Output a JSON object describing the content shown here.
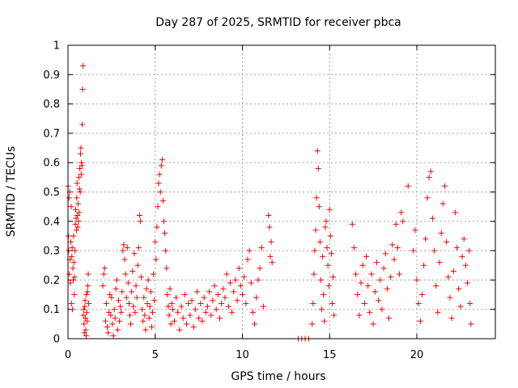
{
  "chart_data": {
    "type": "scatter",
    "title": "Day 287 of 2025, SRMTID for receiver pbca",
    "xlabel": "GPS time / hours",
    "ylabel": "SRMTID / TECUs",
    "xlim": [
      0,
      24.5
    ],
    "ylim": [
      0,
      1
    ],
    "xticks": [
      0,
      5,
      10,
      15,
      20
    ],
    "xtick_labels": [
      "0",
      "5",
      "10",
      "15",
      "20"
    ],
    "yticks": [
      0,
      0.1,
      0.2,
      0.3,
      0.4,
      0.5,
      0.6,
      0.7,
      0.8,
      0.9,
      1
    ],
    "ytick_labels": [
      "0",
      "0.1",
      "0.2",
      "0.3",
      "0.4",
      "0.5",
      "0.6",
      "0.7",
      "0.8",
      "0.9",
      "1"
    ],
    "grid": true,
    "marker": "+",
    "color": "#ff0000",
    "series": [
      {
        "name": "pbca",
        "points": [
          [
            0.0,
            0.52
          ],
          [
            0.02,
            0.35
          ],
          [
            0.04,
            0.3
          ],
          [
            0.06,
            0.48
          ],
          [
            0.08,
            0.22
          ],
          [
            0.1,
            0.5
          ],
          [
            0.12,
            0.27
          ],
          [
            0.14,
            0.19
          ],
          [
            0.16,
            0.33
          ],
          [
            0.18,
            0.45
          ],
          [
            0.2,
            0.12
          ],
          [
            0.22,
            0.28
          ],
          [
            0.24,
            0.31
          ],
          [
            0.26,
            0.1
          ],
          [
            0.28,
            0.24
          ],
          [
            0.3,
            0.2
          ],
          [
            0.32,
            0.35
          ],
          [
            0.34,
            0.26
          ],
          [
            0.36,
            0.15
          ],
          [
            0.38,
            0.21
          ],
          [
            0.4,
            0.3
          ],
          [
            0.42,
            0.39
          ],
          [
            0.44,
            0.44
          ],
          [
            0.46,
            0.41
          ],
          [
            0.48,
            0.37
          ],
          [
            0.5,
            0.48
          ],
          [
            0.52,
            0.53
          ],
          [
            0.54,
            0.42
          ],
          [
            0.56,
            0.38
          ],
          [
            0.58,
            0.46
          ],
          [
            0.6,
            0.4
          ],
          [
            0.62,
            0.55
          ],
          [
            0.64,
            0.43
          ],
          [
            0.66,
            0.51
          ],
          [
            0.68,
            0.58
          ],
          [
            0.7,
            0.5
          ],
          [
            0.72,
            0.63
          ],
          [
            0.74,
            0.65
          ],
          [
            0.76,
            0.56
          ],
          [
            0.78,
            0.6
          ],
          [
            0.8,
            0.59
          ],
          [
            0.82,
            0.73
          ],
          [
            0.84,
            0.85
          ],
          [
            0.86,
            0.93
          ],
          [
            0.88,
            0.08
          ],
          [
            0.9,
            0.1
          ],
          [
            0.92,
            0.05
          ],
          [
            0.94,
            0.02
          ],
          [
            0.96,
            0.11
          ],
          [
            0.98,
            0.13
          ],
          [
            1.0,
            0.07
          ],
          [
            1.02,
            0.03
          ],
          [
            1.04,
            0.01
          ],
          [
            1.06,
            0.15
          ],
          [
            1.08,
            0.09
          ],
          [
            1.1,
            0.06
          ],
          [
            1.12,
            0.16
          ],
          [
            1.14,
            0.18
          ],
          [
            1.16,
            0.22
          ],
          [
            1.18,
            0.12
          ],
          [
            2.0,
            0.18
          ],
          [
            2.05,
            0.22
          ],
          [
            2.1,
            0.24
          ],
          [
            2.15,
            0.06
          ],
          [
            2.2,
            0.12
          ],
          [
            2.25,
            0.04
          ],
          [
            2.3,
            0.02
          ],
          [
            2.35,
            0.09
          ],
          [
            2.4,
            0.15
          ],
          [
            2.45,
            0.08
          ],
          [
            2.5,
            0.14
          ],
          [
            2.55,
            0.05
          ],
          [
            2.6,
            0.01
          ],
          [
            2.65,
            0.1
          ],
          [
            2.7,
            0.07
          ],
          [
            2.75,
            0.17
          ],
          [
            2.8,
            0.2
          ],
          [
            2.85,
            0.03
          ],
          [
            2.9,
            0.13
          ],
          [
            2.95,
            0.06
          ],
          [
            3.0,
            0.11
          ],
          [
            3.05,
            0.09
          ],
          [
            3.1,
            0.16
          ],
          [
            3.15,
            0.3
          ],
          [
            3.2,
            0.32
          ],
          [
            3.25,
            0.27
          ],
          [
            3.3,
            0.22
          ],
          [
            3.35,
            0.14
          ],
          [
            3.4,
            0.31
          ],
          [
            3.45,
            0.19
          ],
          [
            3.5,
            0.12
          ],
          [
            3.55,
            0.08
          ],
          [
            3.6,
            0.05
          ],
          [
            3.65,
            0.16
          ],
          [
            3.7,
            0.23
          ],
          [
            3.75,
            0.11
          ],
          [
            3.8,
            0.29
          ],
          [
            3.85,
            0.09
          ],
          [
            3.9,
            0.18
          ],
          [
            3.95,
            0.14
          ],
          [
            4.0,
            0.25
          ],
          [
            4.05,
            0.31
          ],
          [
            4.1,
            0.42
          ],
          [
            4.15,
            0.4
          ],
          [
            4.2,
            0.21
          ],
          [
            4.25,
            0.1
          ],
          [
            4.3,
            0.06
          ],
          [
            4.35,
            0.14
          ],
          [
            4.4,
            0.08
          ],
          [
            4.45,
            0.03
          ],
          [
            4.5,
            0.17
          ],
          [
            4.55,
            0.12
          ],
          [
            4.6,
            0.2
          ],
          [
            4.65,
            0.07
          ],
          [
            4.7,
            0.11
          ],
          [
            4.75,
            0.16
          ],
          [
            4.8,
            0.04
          ],
          [
            4.85,
            0.09
          ],
          [
            4.9,
            0.22
          ],
          [
            4.95,
            0.13
          ],
          [
            5.0,
            0.33
          ],
          [
            5.05,
            0.27
          ],
          [
            5.1,
            0.38
          ],
          [
            5.15,
            0.45
          ],
          [
            5.2,
            0.53
          ],
          [
            5.25,
            0.56
          ],
          [
            5.3,
            0.5
          ],
          [
            5.35,
            0.59
          ],
          [
            5.4,
            0.61
          ],
          [
            5.45,
            0.47
          ],
          [
            5.5,
            0.4
          ],
          [
            5.55,
            0.36
          ],
          [
            5.6,
            0.3
          ],
          [
            5.65,
            0.24
          ],
          [
            5.7,
            0.15
          ],
          [
            5.75,
            0.11
          ],
          [
            5.8,
            0.08
          ],
          [
            5.85,
            0.17
          ],
          [
            5.9,
            0.05
          ],
          [
            5.95,
            0.12
          ],
          [
            6.0,
            0.1
          ],
          [
            6.1,
            0.06
          ],
          [
            6.2,
            0.14
          ],
          [
            6.3,
            0.09
          ],
          [
            6.4,
            0.03
          ],
          [
            6.5,
            0.11
          ],
          [
            6.6,
            0.07
          ],
          [
            6.7,
            0.15
          ],
          [
            6.8,
            0.05
          ],
          [
            6.9,
            0.12
          ],
          [
            7.0,
            0.08
          ],
          [
            7.1,
            0.13
          ],
          [
            7.2,
            0.04
          ],
          [
            7.3,
            0.1
          ],
          [
            7.4,
            0.16
          ],
          [
            7.5,
            0.07
          ],
          [
            7.6,
            0.12
          ],
          [
            7.7,
            0.06
          ],
          [
            7.8,
            0.14
          ],
          [
            7.9,
            0.09
          ],
          [
            8.0,
            0.11
          ],
          [
            8.1,
            0.16
          ],
          [
            8.2,
            0.08
          ],
          [
            8.3,
            0.13
          ],
          [
            8.4,
            0.18
          ],
          [
            8.5,
            0.1
          ],
          [
            8.6,
            0.15
          ],
          [
            8.7,
            0.07
          ],
          [
            8.8,
            0.12
          ],
          [
            8.9,
            0.17
          ],
          [
            9.0,
            0.14
          ],
          [
            9.1,
            0.22
          ],
          [
            9.2,
            0.11
          ],
          [
            9.3,
            0.19
          ],
          [
            9.4,
            0.09
          ],
          [
            9.5,
            0.16
          ],
          [
            9.6,
            0.2
          ],
          [
            9.7,
            0.13
          ],
          [
            9.8,
            0.24
          ],
          [
            9.9,
            0.18
          ],
          [
            10.0,
            0.15
          ],
          [
            10.1,
            0.21
          ],
          [
            10.2,
            0.12
          ],
          [
            10.3,
            0.27
          ],
          [
            10.4,
            0.3
          ],
          [
            10.5,
            0.19
          ],
          [
            10.6,
            0.09
          ],
          [
            10.7,
            0.05
          ],
          [
            10.8,
            0.14
          ],
          [
            10.9,
            0.2
          ],
          [
            11.0,
            0.24
          ],
          [
            11.1,
            0.31
          ],
          [
            11.2,
            0.11
          ],
          [
            11.5,
            0.42
          ],
          [
            11.55,
            0.38
          ],
          [
            11.6,
            0.28
          ],
          [
            11.65,
            0.33
          ],
          [
            11.7,
            0.26
          ],
          [
            13.2,
            0.0
          ],
          [
            13.4,
            0.0
          ],
          [
            13.6,
            0.0
          ],
          [
            13.8,
            0.0
          ],
          [
            14.0,
            0.05
          ],
          [
            14.05,
            0.12
          ],
          [
            14.1,
            0.22
          ],
          [
            14.15,
            0.3
          ],
          [
            14.2,
            0.37
          ],
          [
            14.25,
            0.48
          ],
          [
            14.3,
            0.64
          ],
          [
            14.35,
            0.58
          ],
          [
            14.4,
            0.45
          ],
          [
            14.45,
            0.33
          ],
          [
            14.5,
            0.2
          ],
          [
            14.55,
            0.1
          ],
          [
            14.6,
            0.28
          ],
          [
            14.65,
            0.15
          ],
          [
            14.7,
            0.06
          ],
          [
            14.75,
            0.38
          ],
          [
            14.8,
            0.4
          ],
          [
            14.85,
            0.31
          ],
          [
            14.9,
            0.25
          ],
          [
            14.95,
            0.18
          ],
          [
            15.0,
            0.44
          ],
          [
            15.05,
            0.35
          ],
          [
            15.1,
            0.29
          ],
          [
            15.15,
            0.12
          ],
          [
            15.2,
            0.21
          ],
          [
            15.25,
            0.08
          ],
          [
            16.3,
            0.39
          ],
          [
            16.4,
            0.31
          ],
          [
            16.5,
            0.22
          ],
          [
            16.6,
            0.15
          ],
          [
            16.7,
            0.08
          ],
          [
            16.8,
            0.19
          ],
          [
            16.9,
            0.25
          ],
          [
            17.0,
            0.12
          ],
          [
            17.1,
            0.28
          ],
          [
            17.2,
            0.18
          ],
          [
            17.3,
            0.09
          ],
          [
            17.4,
            0.22
          ],
          [
            17.5,
            0.05
          ],
          [
            17.6,
            0.16
          ],
          [
            17.7,
            0.26
          ],
          [
            17.8,
            0.13
          ],
          [
            17.9,
            0.2
          ],
          [
            18.0,
            0.1
          ],
          [
            18.1,
            0.24
          ],
          [
            18.2,
            0.29
          ],
          [
            18.3,
            0.17
          ],
          [
            18.4,
            0.07
          ],
          [
            18.5,
            0.21
          ],
          [
            18.6,
            0.32
          ],
          [
            18.7,
            0.27
          ],
          [
            18.8,
            0.39
          ],
          [
            18.9,
            0.31
          ],
          [
            19.0,
            0.22
          ],
          [
            19.1,
            0.43
          ],
          [
            19.2,
            0.4
          ],
          [
            19.5,
            0.52
          ],
          [
            19.8,
            0.3
          ],
          [
            19.9,
            0.37
          ],
          [
            20.0,
            0.2
          ],
          [
            20.1,
            0.12
          ],
          [
            20.2,
            0.06
          ],
          [
            20.3,
            0.15
          ],
          [
            20.4,
            0.25
          ],
          [
            20.5,
            0.34
          ],
          [
            20.6,
            0.48
          ],
          [
            20.7,
            0.55
          ],
          [
            20.8,
            0.57
          ],
          [
            20.9,
            0.41
          ],
          [
            21.0,
            0.3
          ],
          [
            21.1,
            0.18
          ],
          [
            21.2,
            0.09
          ],
          [
            21.3,
            0.26
          ],
          [
            21.4,
            0.36
          ],
          [
            21.5,
            0.46
          ],
          [
            21.6,
            0.52
          ],
          [
            21.7,
            0.33
          ],
          [
            21.8,
            0.21
          ],
          [
            21.9,
            0.14
          ],
          [
            22.0,
            0.07
          ],
          [
            22.1,
            0.23
          ],
          [
            22.2,
            0.43
          ],
          [
            22.3,
            0.31
          ],
          [
            22.4,
            0.17
          ],
          [
            22.5,
            0.11
          ],
          [
            22.6,
            0.28
          ],
          [
            22.7,
            0.34
          ],
          [
            22.8,
            0.25
          ],
          [
            22.9,
            0.19
          ],
          [
            23.0,
            0.3
          ],
          [
            23.05,
            0.12
          ],
          [
            23.1,
            0.05
          ]
        ]
      }
    ]
  }
}
